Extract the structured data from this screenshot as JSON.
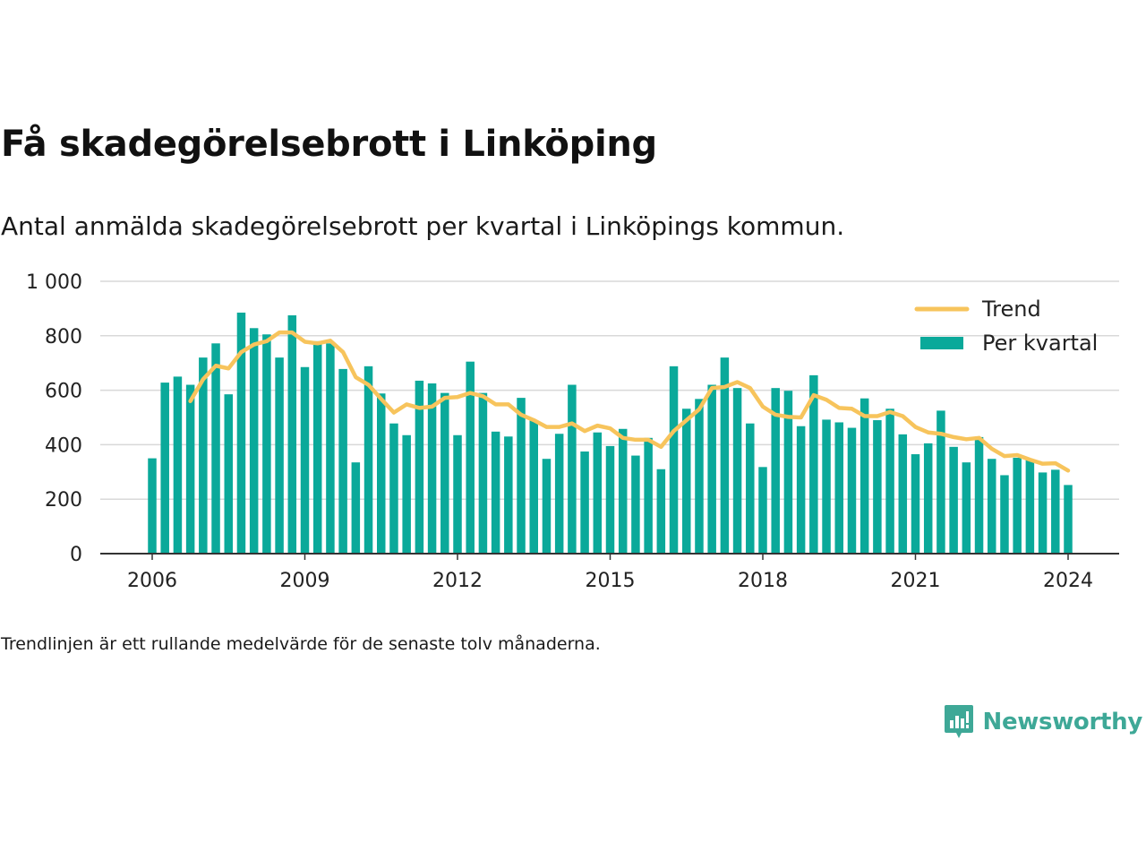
{
  "brand": {
    "name": "Newsworthy",
    "color": "#3ea897",
    "icon": "newsworthy-logo-icon"
  },
  "colors": {
    "bars": "#0aa99a",
    "trend": "#f7c45c",
    "grid": "#d9d9d9",
    "axis": "#333333"
  },
  "chart_data": {
    "type": "bar",
    "title": "Få skadegörelsebrott i Linköping",
    "subtitle": "Antal anmälda skadegörelsebrott per kvartal i Linköpings kommun.",
    "note": "Trendlinjen är ett rullande medelvärde för de senaste tolv månaderna.",
    "xlabel": "",
    "ylabel": "",
    "ylim": [
      0,
      1000
    ],
    "yticks": [
      0,
      200,
      400,
      600,
      800,
      1000
    ],
    "ytick_labels": [
      "0",
      "200",
      "400",
      "600",
      "800",
      "1 000"
    ],
    "xticks": [
      2006,
      2009,
      2012,
      2015,
      2018,
      2021,
      2024
    ],
    "xtick_labels": [
      "2006",
      "2009",
      "2012",
      "2015",
      "2018",
      "2021",
      "2024"
    ],
    "grid": true,
    "legend_position": "top-right",
    "legend": [
      "Trend",
      "Per kvartal"
    ],
    "x": [
      "2006 Q1",
      "2006 Q2",
      "2006 Q3",
      "2006 Q4",
      "2007 Q1",
      "2007 Q2",
      "2007 Q3",
      "2007 Q4",
      "2008 Q1",
      "2008 Q2",
      "2008 Q3",
      "2008 Q4",
      "2009 Q1",
      "2009 Q2",
      "2009 Q3",
      "2009 Q4",
      "2010 Q1",
      "2010 Q2",
      "2010 Q3",
      "2010 Q4",
      "2011 Q1",
      "2011 Q2",
      "2011 Q3",
      "2011 Q4",
      "2012 Q1",
      "2012 Q2",
      "2012 Q3",
      "2012 Q4",
      "2013 Q1",
      "2013 Q2",
      "2013 Q3",
      "2013 Q4",
      "2014 Q1",
      "2014 Q2",
      "2014 Q3",
      "2014 Q4",
      "2015 Q1",
      "2015 Q2",
      "2015 Q3",
      "2015 Q4",
      "2016 Q1",
      "2016 Q2",
      "2016 Q3",
      "2016 Q4",
      "2017 Q1",
      "2017 Q2",
      "2017 Q3",
      "2017 Q4",
      "2018 Q1",
      "2018 Q2",
      "2018 Q3",
      "2018 Q4",
      "2019 Q1",
      "2019 Q2",
      "2019 Q3",
      "2019 Q4",
      "2020 Q1",
      "2020 Q2",
      "2020 Q3",
      "2020 Q4",
      "2021 Q1",
      "2021 Q2",
      "2021 Q3",
      "2021 Q4",
      "2022 Q1",
      "2022 Q2",
      "2022 Q3",
      "2022 Q4",
      "2023 Q1",
      "2023 Q2",
      "2023 Q3",
      "2023 Q4",
      "2024 Q1"
    ],
    "series": [
      {
        "name": "Per kvartal",
        "type": "bar",
        "values": [
          350,
          628,
          650,
          620,
          720,
          772,
          585,
          885,
          828,
          805,
          720,
          875,
          685,
          780,
          772,
          678,
          335,
          688,
          588,
          478,
          435,
          635,
          625,
          590,
          435,
          705,
          590,
          448,
          430,
          572,
          490,
          348,
          440,
          620,
          375,
          445,
          395,
          458,
          360,
          425,
          310,
          688,
          532,
          568,
          620,
          720,
          608,
          478,
          318,
          608,
          598,
          468,
          655,
          492,
          482,
          462,
          570,
          490,
          532,
          438,
          365,
          405,
          525,
          392,
          335,
          428,
          348,
          288,
          352,
          345,
          298,
          308,
          252
        ]
      },
      {
        "name": "Trend",
        "type": "line",
        "values": [
          null,
          null,
          null,
          560,
          640,
          690,
          680,
          740,
          768,
          780,
          812,
          812,
          778,
          772,
          782,
          740,
          648,
          620,
          568,
          518,
          548,
          535,
          540,
          572,
          575,
          590,
          578,
          548,
          548,
          510,
          490,
          465,
          465,
          478,
          450,
          470,
          460,
          425,
          418,
          418,
          392,
          450,
          490,
          530,
          608,
          612,
          630,
          608,
          540,
          510,
          502,
          500,
          582,
          565,
          535,
          532,
          505,
          505,
          520,
          505,
          465,
          445,
          440,
          428,
          420,
          425,
          385,
          358,
          362,
          345,
          330,
          332,
          305
        ]
      }
    ]
  }
}
